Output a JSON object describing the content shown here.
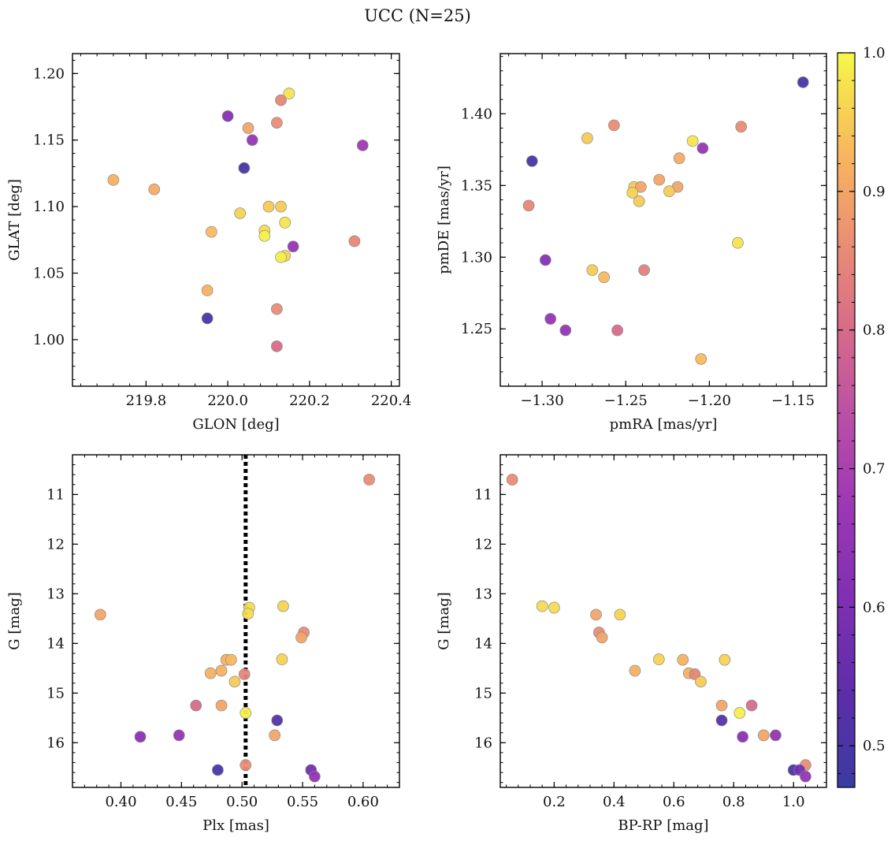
{
  "figure": {
    "title": "UCC (N=25)"
  },
  "colorbar": {
    "min": 0.47,
    "max": 1.0,
    "ticks": [
      0.5,
      0.6,
      0.7,
      0.8,
      0.9,
      1.0
    ],
    "tick_labels": [
      "0.5",
      "0.6",
      "0.7",
      "0.8",
      "0.9",
      "1.0"
    ],
    "colormap": "plasma"
  },
  "chart_data": [
    {
      "type": "scatter",
      "title": "",
      "xlabel": "GLON [deg]",
      "ylabel": "GLAT [deg]",
      "xlim": [
        219.62,
        220.42
      ],
      "ylim": [
        0.965,
        1.215
      ],
      "xticks": [
        219.8,
        220.0,
        220.2,
        220.4
      ],
      "xtick_labels": [
        "219.8",
        "220.0",
        "220.2",
        "220.4"
      ],
      "yticks": [
        1.0,
        1.05,
        1.1,
        1.15,
        1.2
      ],
      "ytick_labels": [
        "1.00",
        "1.05",
        "1.10",
        "1.15",
        "1.20"
      ],
      "y_inverted": false,
      "points": [
        {
          "x": 220.15,
          "y": 1.185,
          "c": 0.98
        },
        {
          "x": 220.13,
          "y": 1.18,
          "c": 0.85
        },
        {
          "x": 220.0,
          "y": 1.168,
          "c": 0.62
        },
        {
          "x": 220.12,
          "y": 1.163,
          "c": 0.86
        },
        {
          "x": 220.05,
          "y": 1.159,
          "c": 0.9
        },
        {
          "x": 220.06,
          "y": 1.15,
          "c": 0.66
        },
        {
          "x": 220.33,
          "y": 1.146,
          "c": 0.68
        },
        {
          "x": 220.04,
          "y": 1.129,
          "c": 0.5
        },
        {
          "x": 219.72,
          "y": 1.12,
          "c": 0.92
        },
        {
          "x": 219.82,
          "y": 1.113,
          "c": 0.91
        },
        {
          "x": 220.1,
          "y": 1.1,
          "c": 0.95
        },
        {
          "x": 220.13,
          "y": 1.1,
          "c": 0.95
        },
        {
          "x": 220.03,
          "y": 1.095,
          "c": 0.96
        },
        {
          "x": 220.14,
          "y": 1.088,
          "c": 0.98
        },
        {
          "x": 220.09,
          "y": 1.082,
          "c": 0.97
        },
        {
          "x": 219.96,
          "y": 1.081,
          "c": 0.93
        },
        {
          "x": 220.09,
          "y": 1.078,
          "c": 0.99
        },
        {
          "x": 220.31,
          "y": 1.074,
          "c": 0.85
        },
        {
          "x": 220.16,
          "y": 1.07,
          "c": 0.65
        },
        {
          "x": 220.14,
          "y": 1.063,
          "c": 0.96
        },
        {
          "x": 220.13,
          "y": 1.062,
          "c": 0.99
        },
        {
          "x": 219.95,
          "y": 1.037,
          "c": 0.92
        },
        {
          "x": 220.12,
          "y": 1.023,
          "c": 0.86
        },
        {
          "x": 219.95,
          "y": 1.016,
          "c": 0.5
        },
        {
          "x": 220.12,
          "y": 0.995,
          "c": 0.8
        }
      ]
    },
    {
      "type": "scatter",
      "title": "",
      "xlabel": "pmRA [mas/yr]",
      "ylabel": "pmDE [mas/yr]",
      "xlim": [
        -1.325,
        -1.13
      ],
      "ylim": [
        1.21,
        1.442
      ],
      "xticks": [
        -1.3,
        -1.25,
        -1.2,
        -1.15
      ],
      "xtick_labels": [
        "−1.30",
        "−1.25",
        "−1.20",
        "−1.15"
      ],
      "yticks": [
        1.25,
        1.3,
        1.35,
        1.4
      ],
      "ytick_labels": [
        "1.25",
        "1.30",
        "1.35",
        "1.40"
      ],
      "y_inverted": false,
      "points": [
        {
          "x": -1.144,
          "y": 1.422,
          "c": 0.5
        },
        {
          "x": -1.257,
          "y": 1.392,
          "c": 0.86
        },
        {
          "x": -1.181,
          "y": 1.391,
          "c": 0.86
        },
        {
          "x": -1.273,
          "y": 1.383,
          "c": 0.95
        },
        {
          "x": -1.21,
          "y": 1.381,
          "c": 0.98
        },
        {
          "x": -1.204,
          "y": 1.376,
          "c": 0.66
        },
        {
          "x": -1.218,
          "y": 1.369,
          "c": 0.91
        },
        {
          "x": -1.306,
          "y": 1.367,
          "c": 0.5
        },
        {
          "x": -1.23,
          "y": 1.354,
          "c": 0.9
        },
        {
          "x": -1.245,
          "y": 1.349,
          "c": 0.95
        },
        {
          "x": -1.241,
          "y": 1.349,
          "c": 0.9
        },
        {
          "x": -1.219,
          "y": 1.349,
          "c": 0.9
        },
        {
          "x": -1.224,
          "y": 1.346,
          "c": 0.95
        },
        {
          "x": -1.246,
          "y": 1.345,
          "c": 0.96
        },
        {
          "x": -1.242,
          "y": 1.339,
          "c": 0.95
        },
        {
          "x": -1.308,
          "y": 1.336,
          "c": 0.85
        },
        {
          "x": -1.183,
          "y": 1.31,
          "c": 0.98
        },
        {
          "x": -1.298,
          "y": 1.298,
          "c": 0.62
        },
        {
          "x": -1.239,
          "y": 1.291,
          "c": 0.84
        },
        {
          "x": -1.27,
          "y": 1.291,
          "c": 0.95
        },
        {
          "x": -1.263,
          "y": 1.286,
          "c": 0.93
        },
        {
          "x": -1.295,
          "y": 1.257,
          "c": 0.65
        },
        {
          "x": -1.286,
          "y": 1.249,
          "c": 0.65
        },
        {
          "x": -1.255,
          "y": 1.249,
          "c": 0.8
        },
        {
          "x": -1.205,
          "y": 1.229,
          "c": 0.93
        }
      ]
    },
    {
      "type": "scatter",
      "title": "",
      "xlabel": "Plx [mas]",
      "ylabel": "G [mag]",
      "xlim": [
        0.36,
        0.63
      ],
      "ylim": [
        16.9,
        10.2
      ],
      "xticks": [
        0.4,
        0.45,
        0.5,
        0.55,
        0.6
      ],
      "xtick_labels": [
        "0.40",
        "0.45",
        "0.50",
        "0.55",
        "0.60"
      ],
      "yticks": [
        11,
        12,
        13,
        14,
        15,
        16
      ],
      "ytick_labels": [
        "11",
        "12",
        "13",
        "14",
        "15",
        "16"
      ],
      "y_inverted": true,
      "vline": {
        "x": 0.503,
        "style": "dotted",
        "color": "#000000"
      },
      "points": [
        {
          "x": 0.605,
          "y": 10.7,
          "c": 0.86
        },
        {
          "x": 0.383,
          "y": 13.42,
          "c": 0.9
        },
        {
          "x": 0.534,
          "y": 13.25,
          "c": 0.96
        },
        {
          "x": 0.506,
          "y": 13.28,
          "c": 0.97
        },
        {
          "x": 0.505,
          "y": 13.4,
          "c": 0.97
        },
        {
          "x": 0.551,
          "y": 13.78,
          "c": 0.86
        },
        {
          "x": 0.549,
          "y": 13.88,
          "c": 0.9
        },
        {
          "x": 0.533,
          "y": 14.32,
          "c": 0.96
        },
        {
          "x": 0.487,
          "y": 14.33,
          "c": 0.92
        },
        {
          "x": 0.491,
          "y": 14.33,
          "c": 0.93
        },
        {
          "x": 0.483,
          "y": 14.55,
          "c": 0.92
        },
        {
          "x": 0.474,
          "y": 14.6,
          "c": 0.92
        },
        {
          "x": 0.502,
          "y": 14.62,
          "c": 0.85
        },
        {
          "x": 0.494,
          "y": 14.77,
          "c": 0.95
        },
        {
          "x": 0.462,
          "y": 15.25,
          "c": 0.8
        },
        {
          "x": 0.483,
          "y": 15.25,
          "c": 0.9
        },
        {
          "x": 0.503,
          "y": 15.4,
          "c": 0.99
        },
        {
          "x": 0.529,
          "y": 15.55,
          "c": 0.52
        },
        {
          "x": 0.527,
          "y": 15.85,
          "c": 0.9
        },
        {
          "x": 0.448,
          "y": 15.85,
          "c": 0.65
        },
        {
          "x": 0.416,
          "y": 15.88,
          "c": 0.63
        },
        {
          "x": 0.503,
          "y": 16.45,
          "c": 0.86
        },
        {
          "x": 0.48,
          "y": 16.55,
          "c": 0.5
        },
        {
          "x": 0.557,
          "y": 16.55,
          "c": 0.58
        },
        {
          "x": 0.56,
          "y": 16.68,
          "c": 0.65
        }
      ]
    },
    {
      "type": "scatter",
      "title": "",
      "xlabel": "BP-RP [mag]",
      "ylabel": "G [mag]",
      "xlim": [
        0.02,
        1.11
      ],
      "ylim": [
        16.9,
        10.2
      ],
      "xticks": [
        0.2,
        0.4,
        0.6,
        0.8,
        1.0
      ],
      "xtick_labels": [
        "0.2",
        "0.4",
        "0.6",
        "0.8",
        "1.0"
      ],
      "yticks": [
        11,
        12,
        13,
        14,
        15,
        16
      ],
      "ytick_labels": [
        "11",
        "12",
        "13",
        "14",
        "15",
        "16"
      ],
      "y_inverted": true,
      "points": [
        {
          "x": 0.06,
          "y": 10.7,
          "c": 0.86
        },
        {
          "x": 0.16,
          "y": 13.25,
          "c": 0.97
        },
        {
          "x": 0.2,
          "y": 13.28,
          "c": 0.97
        },
        {
          "x": 0.34,
          "y": 13.42,
          "c": 0.9
        },
        {
          "x": 0.42,
          "y": 13.42,
          "c": 0.96
        },
        {
          "x": 0.35,
          "y": 13.78,
          "c": 0.86
        },
        {
          "x": 0.36,
          "y": 13.88,
          "c": 0.9
        },
        {
          "x": 0.55,
          "y": 14.32,
          "c": 0.96
        },
        {
          "x": 0.63,
          "y": 14.33,
          "c": 0.92
        },
        {
          "x": 0.77,
          "y": 14.33,
          "c": 0.96
        },
        {
          "x": 0.47,
          "y": 14.55,
          "c": 0.92
        },
        {
          "x": 0.65,
          "y": 14.6,
          "c": 0.92
        },
        {
          "x": 0.67,
          "y": 14.62,
          "c": 0.85
        },
        {
          "x": 0.69,
          "y": 14.77,
          "c": 0.95
        },
        {
          "x": 0.76,
          "y": 15.25,
          "c": 0.9
        },
        {
          "x": 0.86,
          "y": 15.25,
          "c": 0.8
        },
        {
          "x": 0.82,
          "y": 15.4,
          "c": 0.99
        },
        {
          "x": 0.76,
          "y": 15.55,
          "c": 0.52
        },
        {
          "x": 0.83,
          "y": 15.88,
          "c": 0.63
        },
        {
          "x": 0.9,
          "y": 15.85,
          "c": 0.9
        },
        {
          "x": 0.94,
          "y": 15.85,
          "c": 0.65
        },
        {
          "x": 1.04,
          "y": 16.45,
          "c": 0.86
        },
        {
          "x": 1.0,
          "y": 16.55,
          "c": 0.5
        },
        {
          "x": 1.02,
          "y": 16.55,
          "c": 0.58
        },
        {
          "x": 1.04,
          "y": 16.68,
          "c": 0.65
        }
      ]
    }
  ]
}
